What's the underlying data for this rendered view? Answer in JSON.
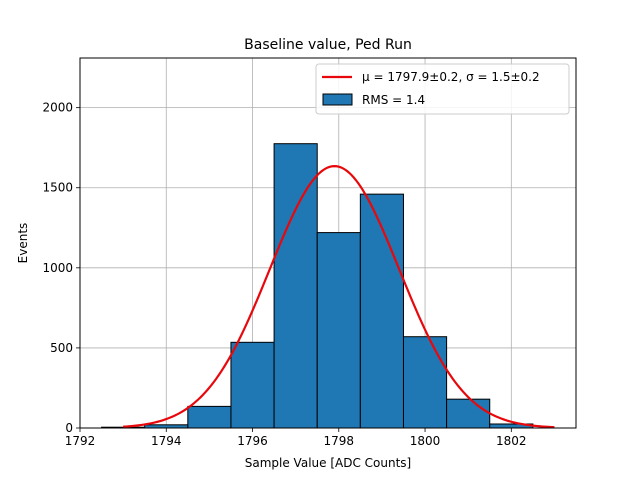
{
  "chart_data": {
    "type": "bar",
    "title": "Baseline value, Ped Run",
    "xlabel": "Sample Value [ADC Counts]",
    "ylabel": "Events",
    "xlim": [
      1792,
      1803.5
    ],
    "ylim": [
      0,
      2310
    ],
    "grid": true,
    "legend_position": "top-right",
    "xticks": [
      1792,
      1794,
      1796,
      1798,
      1800,
      1802
    ],
    "yticks": [
      0,
      500,
      1000,
      1500,
      2000
    ],
    "histogram": {
      "name": "RMS = 1.4",
      "color": "#1f77b4",
      "edgecolor": "#000000",
      "bins": [
        1792.5,
        1793.5,
        1794.5,
        1795.5,
        1796.5,
        1797.5,
        1798.5,
        1799.5,
        1800.5,
        1801.5,
        1802.5
      ],
      "values": [
        5,
        20,
        135,
        535,
        1775,
        1220,
        1460,
        570,
        180,
        25
      ]
    },
    "fit": {
      "label_prefix": "μ = 1797.9±0.2, σ = 1.5±0.2",
      "mu": 1797.9,
      "sigma": 1.5,
      "amplitude": 1635,
      "x_range": [
        1793,
        1803
      ],
      "color": "#e8080c"
    }
  }
}
